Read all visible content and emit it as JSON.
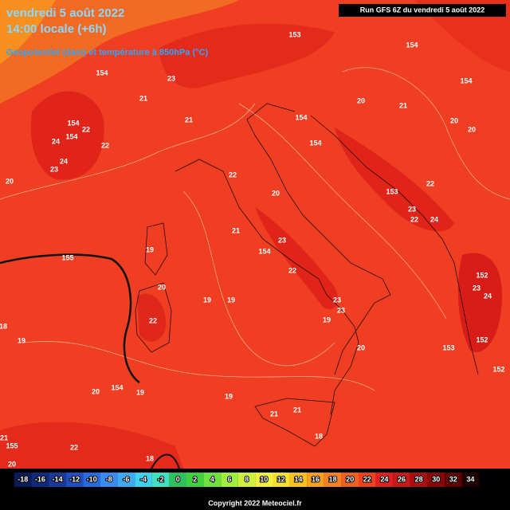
{
  "header": {
    "date": "vendredi 5 août 2022",
    "time": "14:00 locale (+6h)",
    "field": "Geopotentiel (dam) et température à 850hPa (°C)",
    "run": "Run GFS 6Z du vendredi 5 août 2022"
  },
  "map_labels": [
    "153",
    "154",
    "154",
    "154",
    "154",
    "154",
    "154",
    "154",
    "153",
    "154",
    "155",
    "152",
    "153",
    "152",
    "152",
    "154",
    "155",
    "21",
    "23",
    "22",
    "22",
    "24",
    "23",
    "24",
    "20",
    "19",
    "20",
    "22",
    "19",
    "19",
    "20",
    "21",
    "22",
    "21",
    "23",
    "22",
    "23",
    "23",
    "19",
    "20",
    "20",
    "21",
    "20",
    "20",
    "22",
    "23",
    "24",
    "22",
    "23",
    "24",
    "19",
    "18",
    "20",
    "19",
    "21",
    "21",
    "18",
    "19",
    "22",
    "21",
    "18",
    "20"
  ],
  "colorbar": [
    {
      "label": -18,
      "color": "#0b1a5a"
    },
    {
      "label": -16,
      "color": "#102a7a"
    },
    {
      "label": -14,
      "color": "#1a3a9a"
    },
    {
      "label": -12,
      "color": "#2050c0"
    },
    {
      "label": -10,
      "color": "#2a6ae0"
    },
    {
      "label": -8,
      "color": "#3a8af0"
    },
    {
      "label": -6,
      "color": "#40aaf0"
    },
    {
      "label": -4,
      "color": "#40d0f0"
    },
    {
      "label": -2,
      "color": "#40e0c0"
    },
    {
      "label": 0,
      "color": "#30c060"
    },
    {
      "label": 2,
      "color": "#40d040"
    },
    {
      "label": 4,
      "color": "#70e040"
    },
    {
      "label": 6,
      "color": "#a0f040"
    },
    {
      "label": 8,
      "color": "#d0f040"
    },
    {
      "label": 10,
      "color": "#f0f040"
    },
    {
      "label": 12,
      "color": "#f8e030"
    },
    {
      "label": 14,
      "color": "#f8c020"
    },
    {
      "label": 16,
      "color": "#f8a020"
    },
    {
      "label": 18,
      "color": "#f88020"
    },
    {
      "label": 20,
      "color": "#f06020"
    },
    {
      "label": 22,
      "color": "#f04020"
    },
    {
      "label": 24,
      "color": "#e02020"
    },
    {
      "label": 26,
      "color": "#c81818"
    },
    {
      "label": 28,
      "color": "#a81010"
    },
    {
      "label": 30,
      "color": "#880808"
    },
    {
      "label": 32,
      "color": "#600000"
    },
    {
      "label": 34,
      "color": "#200000"
    }
  ],
  "footer": {
    "copyright": "Copyright 2022 Meteociel.fr"
  }
}
